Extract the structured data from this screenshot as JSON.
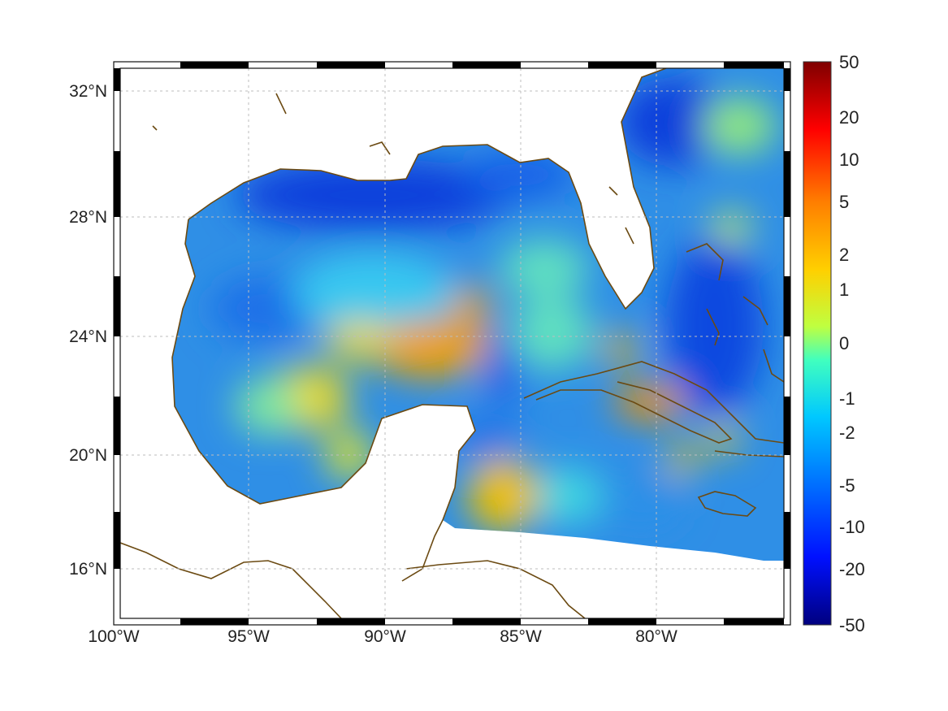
{
  "map": {
    "type": "heatmap",
    "region": "Gulf of Mexico and Caribbean",
    "lon_range": [
      -100,
      -75
    ],
    "lat_range": [
      14.5,
      33
    ],
    "grid": true,
    "colormap": "jet",
    "land_color": "#ffffff",
    "coast_color": "#6b4a12",
    "lon_ticks": [
      {
        "value": -100,
        "label": "100°W"
      },
      {
        "value": -95,
        "label": "95°W"
      },
      {
        "value": -90,
        "label": "90°W"
      },
      {
        "value": -85,
        "label": "85°W"
      },
      {
        "value": -80,
        "label": "80°W"
      }
    ],
    "lat_ticks": [
      {
        "value": 32,
        "label": "32°N"
      },
      {
        "value": 28,
        "label": "28°N"
      },
      {
        "value": 24,
        "label": "24°N"
      },
      {
        "value": 20,
        "label": "20°N"
      },
      {
        "value": 16,
        "label": "16°N"
      }
    ]
  },
  "colorbar": {
    "labels": [
      "50",
      "20",
      "10",
      "5",
      "2",
      "1",
      "0",
      "-1",
      "-2",
      "-5",
      "-10",
      "-20",
      "-50"
    ],
    "position": "right"
  },
  "chart_data": {
    "type": "heatmap",
    "title": "",
    "xlabel": "",
    "ylabel": "",
    "xlim": [
      -100,
      -75
    ],
    "ylim": [
      14.5,
      33
    ],
    "colorbar_ticks": [
      50,
      20,
      10,
      5,
      2,
      1,
      0,
      -1,
      -2,
      -5,
      -10,
      -20,
      -50
    ],
    "notable_features": [
      {
        "description": "positive anomaly band",
        "lon": [
          -89,
          -86.5
        ],
        "lat": [
          22.5,
          24.5
        ],
        "value": 4
      },
      {
        "description": "positive anomaly south of Cuba",
        "lon": [
          -81.5,
          -79.5
        ],
        "lat": [
          21,
          22
        ],
        "value": 4
      },
      {
        "description": "positive anomaly Yucatan Channel east",
        "lon": [
          -86,
          -84
        ],
        "lat": [
          17.5,
          19
        ],
        "value": 2
      },
      {
        "description": "negative anomaly northern Gulf",
        "lon": [
          -90,
          -86
        ],
        "lat": [
          28,
          30
        ],
        "value": -8
      },
      {
        "description": "negative anomaly Atlantic off Florida",
        "lon": [
          -81,
          -78
        ],
        "lat": [
          30,
          32
        ],
        "value": -8
      }
    ]
  }
}
